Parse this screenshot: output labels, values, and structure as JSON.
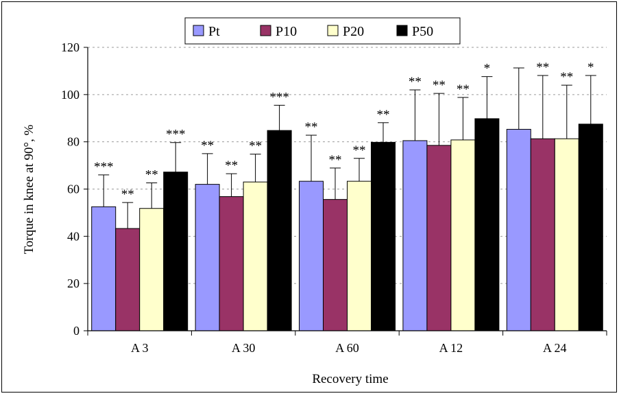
{
  "chart_data": {
    "type": "bar",
    "title": "",
    "xlabel": "Recovery time",
    "ylabel": "Torque in knee at 90°, %",
    "ylim": [
      0,
      120
    ],
    "yticks": [
      0,
      20,
      40,
      60,
      80,
      100,
      120
    ],
    "grid": "horizontal dashed",
    "legend_position": "top",
    "categories": [
      "A 3",
      "A 30",
      "A 60",
      "A 12",
      "A 24"
    ],
    "series": [
      {
        "name": "Pt",
        "color": "#9999ff",
        "values": [
          52.5,
          62,
          63.3,
          80.5,
          85.3
        ],
        "error": [
          13.5,
          13,
          19.5,
          21.5,
          26
        ],
        "significance": [
          "***",
          "**",
          "**",
          "**",
          ""
        ]
      },
      {
        "name": "P10",
        "color": "#993366",
        "values": [
          43.3,
          56.8,
          55.6,
          78.5,
          81.3
        ],
        "error": [
          11,
          9.7,
          13.3,
          22,
          26.8
        ],
        "significance": [
          "**",
          "**",
          "**",
          "**",
          "**"
        ]
      },
      {
        "name": "P20",
        "color": "#ffffcc",
        "values": [
          51.8,
          63,
          63.3,
          80.8,
          81.3
        ],
        "error": [
          10.8,
          11.8,
          9.7,
          18,
          22.7
        ],
        "significance": [
          "**",
          "**",
          "**",
          "**",
          "**"
        ]
      },
      {
        "name": "P50",
        "color": "#000000",
        "values": [
          67.2,
          84.8,
          79.8,
          89.8,
          87.5
        ],
        "error": [
          12.5,
          10.7,
          8.3,
          17.8,
          20.6
        ],
        "significance": [
          "***",
          "***",
          "**",
          "*",
          "*"
        ]
      }
    ]
  }
}
